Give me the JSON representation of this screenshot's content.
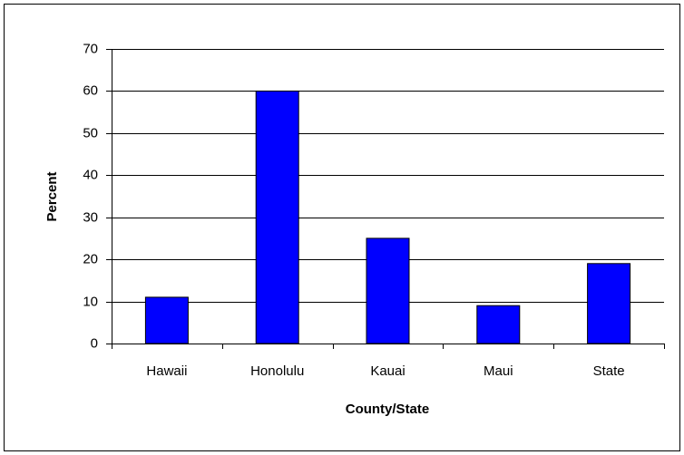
{
  "chart_data": {
    "type": "bar",
    "x_label": "County/State",
    "y_label": "Percent",
    "categories": [
      "Hawaii",
      "Honolulu",
      "Kauai",
      "Maui",
      "State"
    ],
    "values": [
      11,
      60,
      25,
      9,
      19
    ],
    "color": "#0000ff",
    "ylim": [
      0,
      70
    ],
    "yticks": [
      0,
      10,
      20,
      30,
      40,
      50,
      60,
      70
    ],
    "grid": true
  }
}
